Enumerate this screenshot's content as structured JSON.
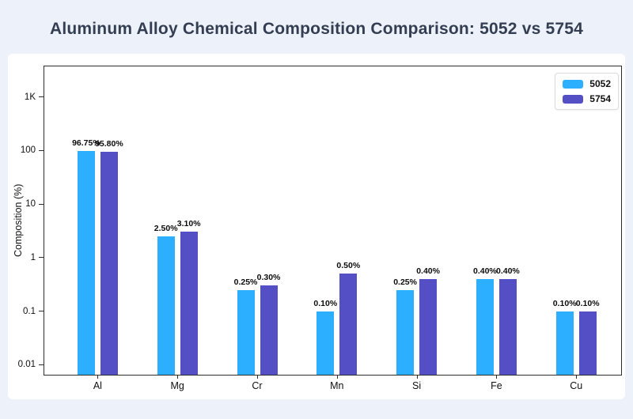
{
  "header": {
    "title": "Aluminum Alloy Chemical Composition Comparison: 5052 vs 5754"
  },
  "chart_data": {
    "type": "bar",
    "title": "Aluminum Alloy Chemical Composition Comparison: 5052 vs 5754",
    "categories": [
      "Al",
      "Mg",
      "Cr",
      "Mn",
      "Si",
      "Fe",
      "Cu"
    ],
    "series": [
      {
        "name": "5052",
        "color": "#2caffe",
        "values": [
          96.75,
          2.5,
          0.25,
          0.1,
          0.25,
          0.4,
          0.1
        ],
        "labels": [
          "96.75%",
          "2.50%",
          "0.25%",
          "0.10%",
          "0.25%",
          "0.40%",
          "0.10%"
        ]
      },
      {
        "name": "5754",
        "color": "#544fc5",
        "values": [
          95.8,
          3.1,
          0.3,
          0.5,
          0.4,
          0.4,
          0.1
        ],
        "labels": [
          "95.80%",
          "3.10%",
          "0.30%",
          "0.50%",
          "0.40%",
          "0.40%",
          "0.10%"
        ]
      }
    ],
    "xlabel": "",
    "ylabel": "Composition (%)",
    "y_scale": "log",
    "ylim": [
      0.0065,
      3700
    ],
    "yticks": [
      {
        "label": "1K",
        "value": 1000
      },
      {
        "label": "100",
        "value": 100
      },
      {
        "label": "10",
        "value": 10
      },
      {
        "label": "1",
        "value": 1
      },
      {
        "label": "0.1",
        "value": 0.1
      },
      {
        "label": "0.01",
        "value": 0.01
      }
    ],
    "grid": false,
    "legend_position": "top-right"
  }
}
